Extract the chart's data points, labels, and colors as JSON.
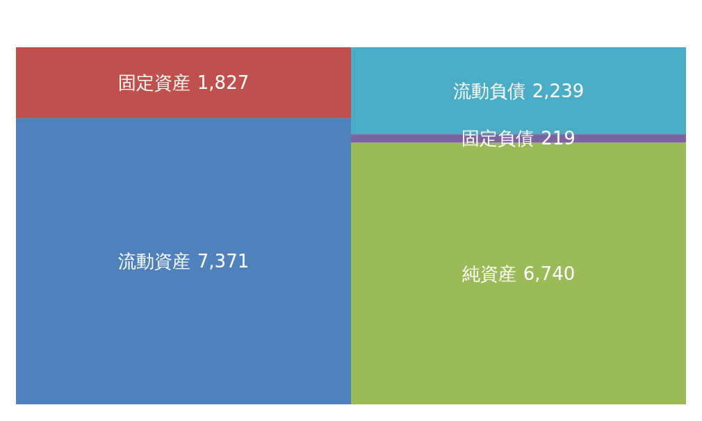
{
  "chart_data": {
    "type": "bar",
    "stacked": true,
    "categories": [
      null,
      null
    ],
    "series": [
      {
        "name": "流動資産",
        "color": "#4f81bd",
        "values": [
          7371,
          null
        ],
        "value_labels": [
          "7,371",
          null
        ]
      },
      {
        "name": "固定資産",
        "color": "#c0504d",
        "values": [
          1827,
          null
        ],
        "value_labels": [
          "1,827",
          null
        ]
      },
      {
        "name": "純資産",
        "color": "#9bbb59",
        "values": [
          null,
          6740
        ],
        "value_labels": [
          null,
          "6,740"
        ]
      },
      {
        "name": "固定負債",
        "color": "#8064a2",
        "values": [
          null,
          219
        ],
        "value_labels": [
          null,
          "219"
        ]
      },
      {
        "name": "流動負債",
        "color": "#4bacc6",
        "values": [
          null,
          2239
        ],
        "value_labels": [
          null,
          "2,239"
        ]
      }
    ],
    "legend": false,
    "grid": false,
    "tick_labels": false
  }
}
